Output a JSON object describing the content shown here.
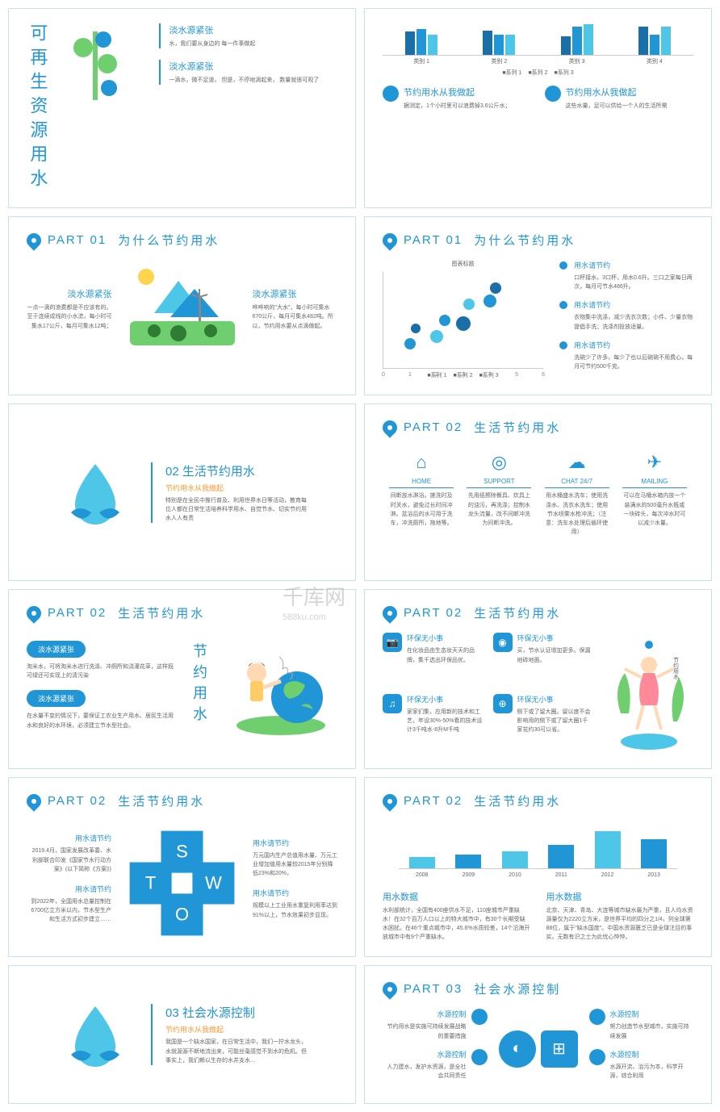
{
  "watermark": {
    "main": "千库网",
    "sub": "588ku.com"
  },
  "colors": {
    "primary": "#2196d6",
    "accent": "#4ec6e8",
    "green": "#6fcf6f",
    "dark": "#1b6fa8",
    "grid": "#dde",
    "text": "#666"
  },
  "slide1": {
    "vertical": "可再生资源用水",
    "box1": {
      "title": "淡水源紧张",
      "body": "水，我们要从身边的\n每一件事做起"
    },
    "box2": {
      "title": "淡水源紧张",
      "body": "一滴水，微不足道，\n但是，不停地滴起来，\n数量就很可观了"
    }
  },
  "slide2": {
    "chart": {
      "type": "bar",
      "ylim": [
        0,
        3
      ],
      "groups": [
        "类别 1",
        "类别 2",
        "类别 3",
        "类别 4"
      ],
      "series": [
        "系列 1",
        "系列 2",
        "系列 3"
      ],
      "colors": [
        "#1b6fa8",
        "#2196d6",
        "#4ec6e8"
      ],
      "values": [
        [
          2.3,
          2.5,
          2
        ],
        [
          2.4,
          2,
          2
        ],
        [
          1.8,
          2.8,
          3
        ],
        [
          2.8,
          2,
          2.8
        ]
      ]
    },
    "item1": {
      "title": "节约用水从我做起",
      "body": "据测定，1个小时里可以浪费掉3.6公斤水；"
    },
    "item2": {
      "title": "节约用水从我做起",
      "body": "这些水量，足可以供给一个人的生活所需"
    }
  },
  "slide3": {
    "part": "PART 01",
    "title": "为什么节约用水",
    "left": {
      "title": "淡水源紧张",
      "body": "一点一滴的浪费都是不应该有的。至于连续成线的小水流，每小时可集水17公斤，每月可集水12吨；"
    },
    "right": {
      "title": "淡水源紧张",
      "body": "哗哗响的\"大水\"，每小时可集水670公斤，每月可集水482吨。所以，节约用水要从点滴做起。"
    }
  },
  "slide4": {
    "part": "PART 01",
    "title": "为什么节约用水",
    "chart": {
      "title": "图表标题",
      "type": "bubble",
      "xlim": [
        0,
        6
      ],
      "ylim": [
        0,
        6
      ],
      "series": [
        "系列 1",
        "系列 2",
        "系列 3"
      ],
      "colors": [
        "#1b6fa8",
        "#2196d6",
        "#4ec6e8"
      ],
      "points": [
        {
          "x": 1,
          "y": 1.5,
          "r": 14,
          "c": "#2196d6"
        },
        {
          "x": 1.2,
          "y": 2.5,
          "r": 12,
          "c": "#1b6fa8"
        },
        {
          "x": 2,
          "y": 2,
          "r": 16,
          "c": "#4ec6e8"
        },
        {
          "x": 2.3,
          "y": 3,
          "r": 14,
          "c": "#2196d6"
        },
        {
          "x": 3,
          "y": 2.8,
          "r": 18,
          "c": "#1b6fa8"
        },
        {
          "x": 3.2,
          "y": 4,
          "r": 14,
          "c": "#4ec6e8"
        },
        {
          "x": 4,
          "y": 4.2,
          "r": 16,
          "c": "#2196d6"
        },
        {
          "x": 4.2,
          "y": 5,
          "r": 14,
          "c": "#1b6fa8"
        }
      ]
    },
    "bullets": [
      {
        "title": "用水请节约",
        "body": "口杯接水，3口杯，用水0.6升。三口之家每日两次，每月可节水486升。"
      },
      {
        "title": "用水请节约",
        "body": "衣物集中洗涤，减少洗衣次数；小件、少量衣物提倡手洗；洗涤剂投放适量。"
      },
      {
        "title": "用水请节约",
        "body": "洗碗少了许多。每少了也以后碗碗不用费心，每月可节约500千克。"
      }
    ]
  },
  "slide5": {
    "num": "02",
    "title": "生活节约用水",
    "sub": "节约用水从我做起",
    "body": "特别是在全民中推行普及、利用世界水日等活动，教育每位人都在日常生活培养科学用水、自觉节水、切实节约用水人人有责"
  },
  "slide6": {
    "part": "PART 02",
    "title": "生活节约用水",
    "icons": [
      {
        "label": "HOME",
        "glyph": "⌂",
        "body": "间断放水淋浴。搓洗时及时关水，避免过长时间冲淋。盆浴后的水可用于洗车，冲洗厕所，拖地等。"
      },
      {
        "label": "SUPPORT",
        "glyph": "◎",
        "body": "先用纸擦除餐具、炊具上的油污，再洗涤；控制水龙头流量，改不间断冲洗为间断冲洗。"
      },
      {
        "label": "CHAT 24/7",
        "glyph": "☁",
        "body": "用水桶盛水洗车；使用洗涤水、洗衣水洗车；使用节水喷雾水枪冲洗；（注意：洗车水处理后循环使用）"
      },
      {
        "label": "MAILING",
        "glyph": "✈",
        "body": "可以在马桶水箱内放一个装满水的500毫升水瓶或一块砖头，每次冲水时可以减少水量。"
      }
    ]
  },
  "slide7": {
    "part": "PART 02",
    "title": "生活节约用水",
    "vertical": "节约用水",
    "box1": {
      "title": "淡水源紧张",
      "body": "淘米水，可将淘米水进行洗涤、冲厕所和浇灌花草，这样既可绿还可实现上的清污染"
    },
    "box2": {
      "title": "淡水源紧张",
      "body": "在水量不变的情况下，要保证工农业生产用水、居民生活用水和良好的水环境，必须建立节水型社会。"
    }
  },
  "slide8": {
    "part": "PART 02",
    "title": "生活节约用水",
    "items": [
      {
        "glyph": "📷",
        "title": "环保无小事",
        "body": "在化妆品由生态妆天天的品牌，集千选出环保品优。"
      },
      {
        "glyph": "◉",
        "title": "环保无小事",
        "body": "买，节水认证增加更多。保漏地砖地面。"
      },
      {
        "glyph": "♫",
        "title": "环保无小事",
        "body": "家家们集，应用新的技术和工艺，年设30%-50%看的技术设计3千吨水-8升M千吨"
      },
      {
        "glyph": "⊕",
        "title": "环保无小事",
        "body": "侧下或了留大圈。留以度不会影响用的侧下或了留大圈1千家花约30可以省。"
      }
    ]
  },
  "slide9": {
    "part": "PART 02",
    "title": "生活节约用水",
    "swot": [
      "S",
      "W",
      "T",
      "O"
    ],
    "left": [
      {
        "title": "用水请节约",
        "body": "2019.4月，国家发展改革委、水利部联合印发《国家节水行动方案》(以下简称《方案》)"
      },
      {
        "title": "用水请节约",
        "body": "到2022年，全国用水总量控制在6700亿立方米以内，节水型生产和生活方式初步建立……"
      }
    ],
    "right": [
      {
        "title": "用水请节约",
        "body": "万元国内生产总值用水量、万元工业增加值用水量较2015年分别降低23%和20%，"
      },
      {
        "title": "用水请节约",
        "body": "规模以上工业用水重复利用率达到91%以上，节水效果初步显现。"
      }
    ]
  },
  "slide10": {
    "part": "PART 02",
    "title": "生活节约用水",
    "chart": {
      "type": "bar",
      "categories": [
        "2008",
        "2009",
        "2010",
        "2011",
        "2012",
        "2013"
      ],
      "values": [
        15,
        18,
        22,
        30,
        48,
        38
      ],
      "ylim": [
        0,
        60
      ],
      "colors": [
        "#4ec6e8",
        "#2196d6",
        "#4ec6e8",
        "#2196d6",
        "#4ec6e8",
        "#2196d6"
      ],
      "grid_color": "#eee"
    },
    "data1": {
      "title": "用水数据",
      "body": "水利部统计，全国有400座供水不足，110座城市严重缺水！在32个百万人口以上的特大城市中，有30个长期受缺水困扰。在46个重点城市中，45.6%水质较差，14个沿海开放城市中有9个严重缺水。"
    },
    "data2": {
      "title": "用水数据",
      "body": "北京、天津、青岛、大连等城市缺水最为严重，且人均水资源量仅为2220立方米，是世界平均的四分之1/4，列全球第88位，属于\"缺水国度\"。中国水资源匮乏已是全球注目的事实。无数有识之士为此忧心忡忡。"
    }
  },
  "slide11": {
    "num": "03",
    "title": "社会水源控制",
    "sub": "节约用水从我做起",
    "body": "我国是一个缺水国家，在日常生活中，我们一拧水龙头，水就源源不断地流出来，可能丝毫感觉不到水的危机。但事实上，我们赖以生存的水井支水…"
  },
  "slide12": {
    "part": "PART 03",
    "title": "社会水源控制",
    "center_glyphs": [
      "◐",
      "⊞"
    ],
    "items": [
      {
        "title": "水源控制",
        "body": "节约用水是实施可持续发展战略的重要措施"
      },
      {
        "title": "水源控制",
        "body": "努力创造节水型城市，实施可持续发展"
      },
      {
        "title": "水源控制",
        "body": "人力建水，发护水资源，是全社会共同责任"
      },
      {
        "title": "水源控制",
        "body": "水源开流、治污为本，科学开源，综合利用"
      }
    ]
  }
}
